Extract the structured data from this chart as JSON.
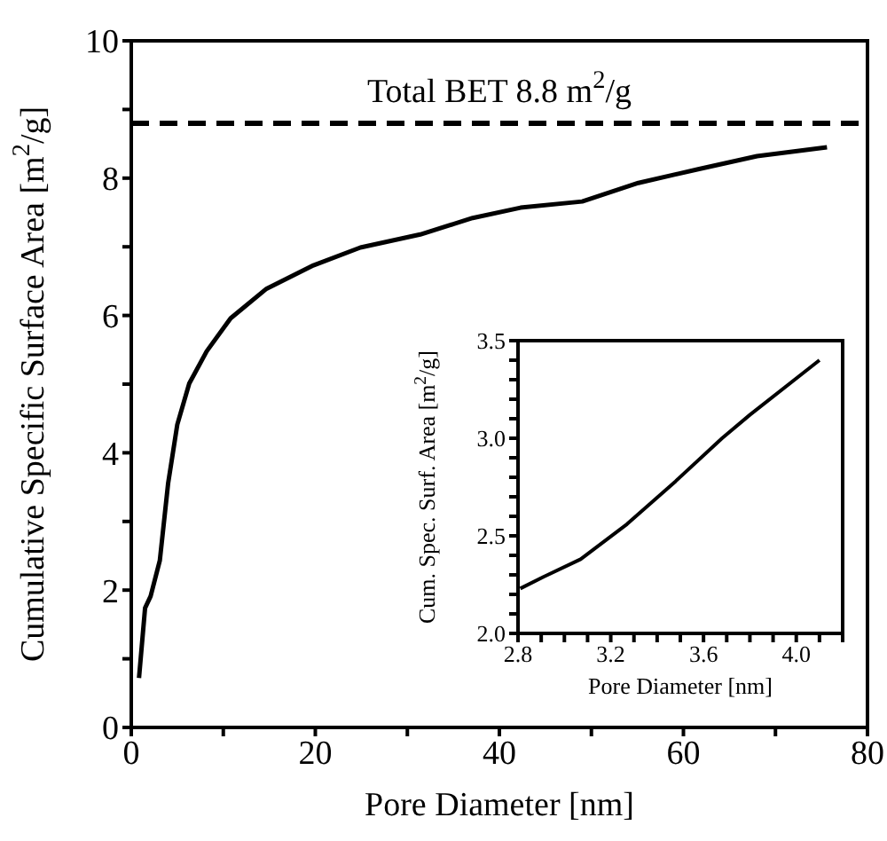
{
  "chart_data": [
    {
      "type": "line",
      "xlabel": "Pore Diameter [nm]",
      "ylabel": "Cumulative Specific Surface Area [m$^{2}$/g]",
      "x": [
        0.84,
        1.5,
        2.1,
        3.1,
        4.0,
        5.0,
        6.3,
        8.2,
        10.8,
        14.7,
        19.8,
        24.9,
        31.4,
        37.1,
        42.3,
        49.0,
        55.1,
        61.6,
        68.0,
        75.6
      ],
      "series": [
        {
          "color": "#000000",
          "values": [
            0.72,
            1.74,
            1.91,
            2.43,
            3.55,
            4.41,
            5.01,
            5.48,
            5.96,
            6.39,
            6.73,
            6.99,
            7.18,
            7.42,
            7.57,
            7.66,
            7.93,
            8.13,
            8.32,
            8.45
          ]
        }
      ],
      "xlim": [
        0,
        80
      ],
      "xticks": [
        0,
        {
          "value": 10,
          "label": null
        },
        20,
        {
          "value": 30,
          "label": null
        },
        40,
        {
          "value": 50,
          "label": null
        },
        60,
        {
          "value": 70,
          "label": null
        },
        80
      ],
      "ylim": [
        0,
        10
      ],
      "yticks": [
        0,
        {
          "value": 1,
          "label": null
        },
        2,
        {
          "value": 3,
          "label": null
        },
        4,
        {
          "value": 5,
          "label": null
        },
        6,
        {
          "value": 7,
          "label": null
        },
        8,
        {
          "value": 9,
          "label": null
        },
        10
      ],
      "ref_lines": [
        {
          "axis": "y",
          "value": 8.8,
          "label": "Total BET 8.8 m$^{2}$/g",
          "color": "#000000",
          "line_style": "dashed"
        }
      ],
      "marker": "none",
      "line_style": "solid"
    },
    {
      "type": "line",
      "xlabel": "Pore Diameter [nm]",
      "ylabel": "Cum. Spec. Surf. Area [m$^{2}$/g]",
      "x": [
        2.81,
        2.91,
        3.07,
        3.27,
        3.48,
        3.68,
        3.8,
        4.1
      ],
      "series": [
        {
          "color": "#000000",
          "values": [
            2.23,
            2.29,
            2.38,
            2.56,
            2.78,
            3.0,
            3.12,
            3.4
          ]
        }
      ],
      "xlim": [
        2.8,
        4.2
      ],
      "xticks": [
        2.8,
        {
          "value": 2.9,
          "label": null
        },
        {
          "value": 3.0,
          "label": null
        },
        {
          "value": 3.1,
          "label": null
        },
        3.2,
        {
          "value": 3.3,
          "label": null
        },
        {
          "value": 3.4,
          "label": null
        },
        {
          "value": 3.5,
          "label": null
        },
        3.6,
        {
          "value": 3.7,
          "label": null
        },
        {
          "value": 3.8,
          "label": null
        },
        {
          "value": 3.9,
          "label": null
        },
        {
          "value": 4.0,
          "label": "4.0"
        },
        {
          "value": 4.1,
          "label": null
        },
        {
          "value": 4.2,
          "label": null
        }
      ],
      "ylim": [
        2.0,
        3.5
      ],
      "yticks": [
        {
          "value": 2.0,
          "label": "2.0"
        },
        {
          "value": 2.1,
          "label": null
        },
        {
          "value": 2.2,
          "label": null
        },
        {
          "value": 2.3,
          "label": null
        },
        {
          "value": 2.4,
          "label": null
        },
        2.5,
        {
          "value": 2.6,
          "label": null
        },
        {
          "value": 2.7,
          "label": null
        },
        {
          "value": 2.8,
          "label": null
        },
        {
          "value": 2.9,
          "label": null
        },
        {
          "value": 3.0,
          "label": "3.0"
        },
        {
          "value": 3.1,
          "label": null
        },
        {
          "value": 3.2,
          "label": null
        },
        {
          "value": 3.3,
          "label": null
        },
        {
          "value": 3.4,
          "label": null
        },
        3.5
      ],
      "marker": "none",
      "line_style": "solid"
    }
  ]
}
